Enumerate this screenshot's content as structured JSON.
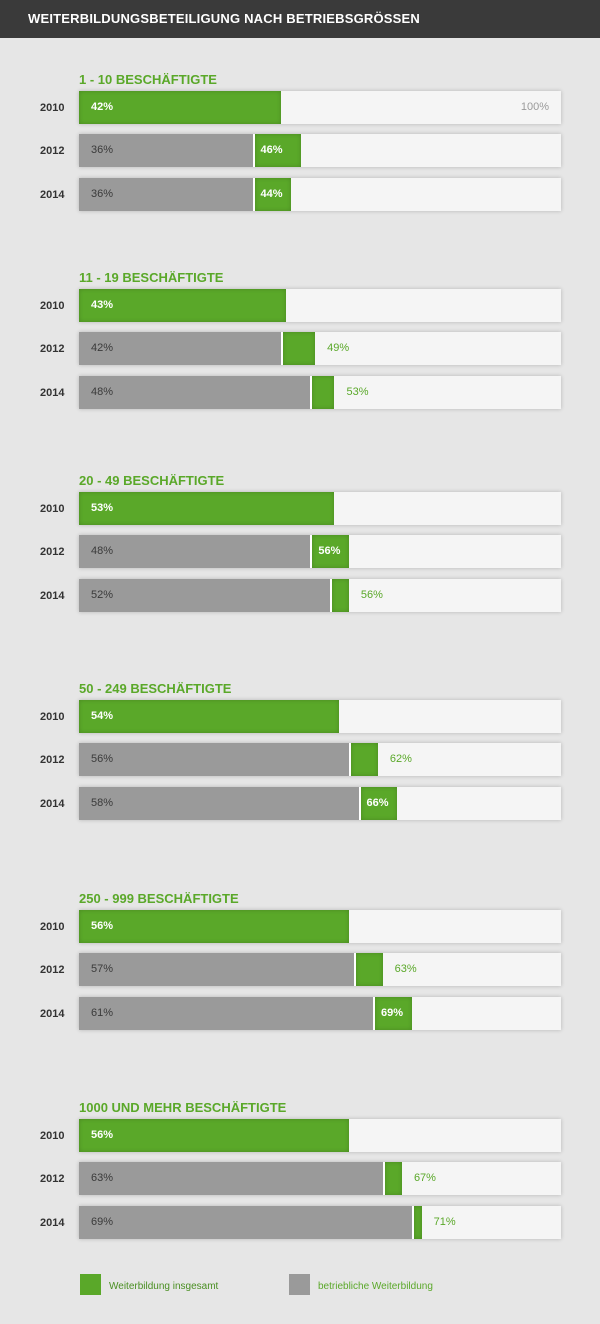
{
  "header": {
    "title": "WEITERBILDUNGSBETEILIGUNG NACH BETRIEBSGRÖSSEN"
  },
  "legend": [
    {
      "label": "Weiterbildung insgesamt",
      "color": "#5aa829"
    },
    {
      "label": "betriebliche Weiterbildung",
      "color": "#9a9a9a"
    }
  ],
  "chart_data": {
    "type": "bar",
    "title": "WEITERBILDUNGSBETEILIGUNG NACH BETRIEBSGRÖSSEN",
    "xlim": [
      0,
      100
    ],
    "max_label": "100%",
    "colors": {
      "total": "#5aa829",
      "betrieblich": "#9a9a9a"
    },
    "groups": [
      {
        "title": "1 - 10 BESCHÄFTIGTE",
        "rows": [
          {
            "year": "2010",
            "total": 42,
            "total_label": "42%"
          },
          {
            "year": "2012",
            "betrieblich": 36,
            "betrieblich_label": "36%",
            "total": 46,
            "total_label": "46%"
          },
          {
            "year": "2014",
            "betrieblich": 36,
            "betrieblich_label": "36%",
            "total": 44,
            "total_label": "44%"
          }
        ]
      },
      {
        "title": "11 - 19 BESCHÄFTIGTE",
        "rows": [
          {
            "year": "2010",
            "total": 43,
            "total_label": "43%"
          },
          {
            "year": "2012",
            "betrieblich": 42,
            "betrieblich_label": "42%",
            "total": 49,
            "total_label": "49%"
          },
          {
            "year": "2014",
            "betrieblich": 48,
            "betrieblich_label": "48%",
            "total": 53,
            "total_label": "53%"
          }
        ]
      },
      {
        "title": "20 - 49 BESCHÄFTIGTE",
        "rows": [
          {
            "year": "2010",
            "total": 53,
            "total_label": "53%"
          },
          {
            "year": "2012",
            "betrieblich": 48,
            "betrieblich_label": "48%",
            "total": 56,
            "total_label": "56%"
          },
          {
            "year": "2014",
            "betrieblich": 52,
            "betrieblich_label": "52%",
            "total": 56,
            "total_label": "56%"
          }
        ]
      },
      {
        "title": "50 - 249 BESCHÄFTIGTE",
        "rows": [
          {
            "year": "2010",
            "total": 54,
            "total_label": "54%"
          },
          {
            "year": "2012",
            "betrieblich": 56,
            "betrieblich_label": "56%",
            "total": 62,
            "total_label": "62%"
          },
          {
            "year": "2014",
            "betrieblich": 58,
            "betrieblich_label": "58%",
            "total": 66,
            "total_label": "66%"
          }
        ]
      },
      {
        "title": "250 - 999 BESCHÄFTIGTE",
        "rows": [
          {
            "year": "2010",
            "total": 56,
            "total_label": "56%"
          },
          {
            "year": "2012",
            "betrieblich": 57,
            "betrieblich_label": "57%",
            "total": 63,
            "total_label": "63%"
          },
          {
            "year": "2014",
            "betrieblich": 61,
            "betrieblich_label": "61%",
            "total": 69,
            "total_label": "69%"
          }
        ]
      },
      {
        "title": "1000 UND MEHR BESCHÄFTIGTE",
        "rows": [
          {
            "year": "2010",
            "total": 56,
            "total_label": "56%"
          },
          {
            "year": "2012",
            "betrieblich": 63,
            "betrieblich_label": "63%",
            "total": 67,
            "total_label": "67%"
          },
          {
            "year": "2014",
            "betrieblich": 69,
            "betrieblich_label": "69%",
            "total": 71,
            "total_label": "71%"
          }
        ]
      }
    ]
  }
}
